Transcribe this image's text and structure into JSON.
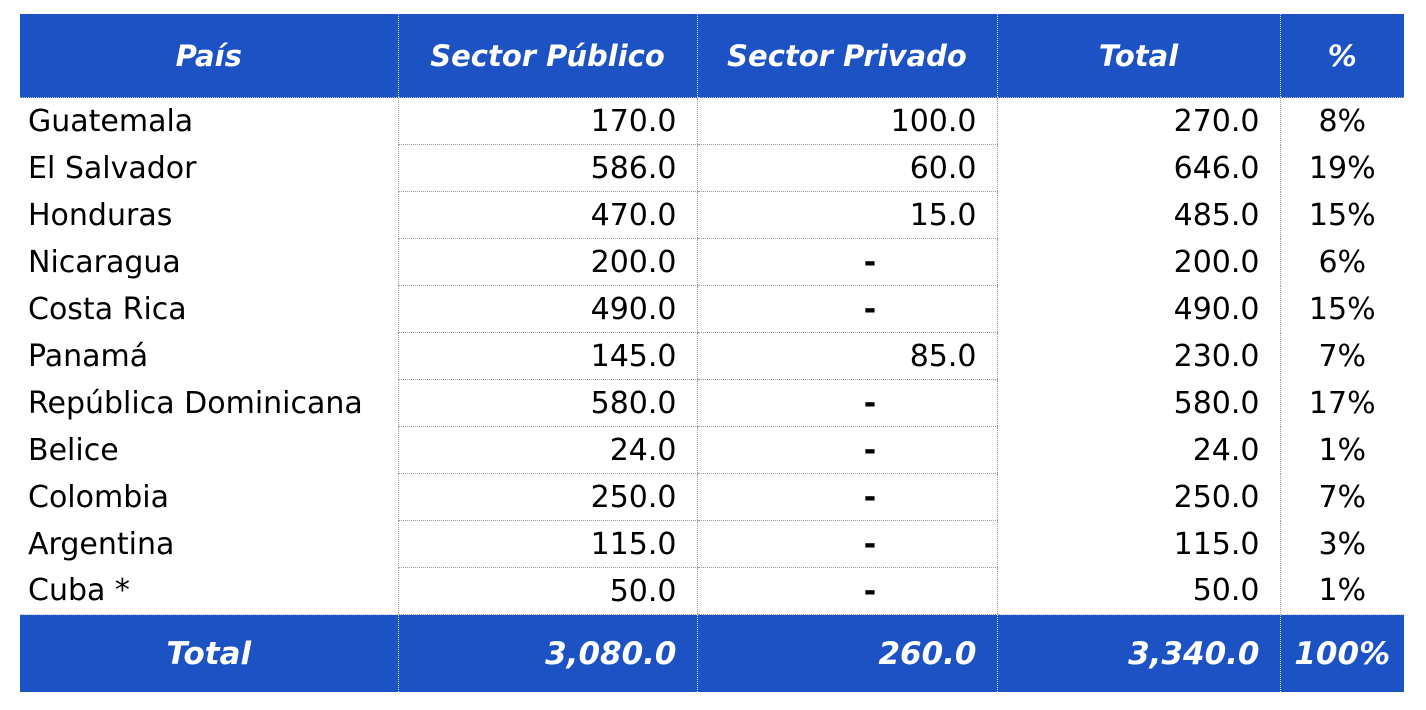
{
  "colors": {
    "header_bg": "#1C52C4",
    "header_text": "#FFFFFF",
    "body_text": "#000000",
    "grid_gray": "#9A9A9A",
    "grid_on_blue": "#DDE3F6"
  },
  "table": {
    "columns": [
      {
        "label": "País"
      },
      {
        "label": "Sector Público"
      },
      {
        "label": "Sector Privado"
      },
      {
        "label": "Total"
      },
      {
        "label": "%"
      }
    ],
    "rows": [
      {
        "pais": "Guatemala",
        "publico": "170.0",
        "privado": "100.0",
        "total": "270.0",
        "pct": "8%"
      },
      {
        "pais": "El Salvador",
        "publico": "586.0",
        "privado": "60.0",
        "total": "646.0",
        "pct": "19%"
      },
      {
        "pais": "Honduras",
        "publico": "470.0",
        "privado": "15.0",
        "total": "485.0",
        "pct": "15%"
      },
      {
        "pais": "Nicaragua",
        "publico": "200.0",
        "privado": "-",
        "total": "200.0",
        "pct": "6%"
      },
      {
        "pais": "Costa Rica",
        "publico": "490.0",
        "privado": "-",
        "total": "490.0",
        "pct": "15%"
      },
      {
        "pais": "Panamá",
        "publico": "145.0",
        "privado": "85.0",
        "total": "230.0",
        "pct": "7%"
      },
      {
        "pais": "República Dominicana",
        "publico": "580.0",
        "privado": "-",
        "total": "580.0",
        "pct": "17%"
      },
      {
        "pais": "Belice",
        "publico": "24.0",
        "privado": "-",
        "total": "24.0",
        "pct": "1%"
      },
      {
        "pais": "Colombia",
        "publico": "250.0",
        "privado": "-",
        "total": "250.0",
        "pct": "7%"
      },
      {
        "pais": "Argentina",
        "publico": "115.0",
        "privado": "-",
        "total": "115.0",
        "pct": "3%"
      },
      {
        "pais": "Cuba *",
        "publico": "50.0",
        "privado": "-",
        "total": "50.0",
        "pct": "1%"
      }
    ],
    "footer": {
      "label": "Total",
      "publico": "3,080.0",
      "privado": "260.0",
      "total": "3,340.0",
      "pct": "100%"
    }
  },
  "chart_data": {
    "type": "table",
    "title": "",
    "columns": [
      "País",
      "Sector Público",
      "Sector Privado",
      "Total",
      "%"
    ],
    "rows": [
      [
        "Guatemala",
        170.0,
        100.0,
        270.0,
        "8%"
      ],
      [
        "El Salvador",
        586.0,
        60.0,
        646.0,
        "19%"
      ],
      [
        "Honduras",
        470.0,
        15.0,
        485.0,
        "15%"
      ],
      [
        "Nicaragua",
        200.0,
        null,
        200.0,
        "6%"
      ],
      [
        "Costa Rica",
        490.0,
        null,
        490.0,
        "15%"
      ],
      [
        "Panamá",
        145.0,
        85.0,
        230.0,
        "7%"
      ],
      [
        "República Dominicana",
        580.0,
        null,
        580.0,
        "17%"
      ],
      [
        "Belice",
        24.0,
        null,
        24.0,
        "1%"
      ],
      [
        "Colombia",
        250.0,
        null,
        250.0,
        "7%"
      ],
      [
        "Argentina",
        115.0,
        null,
        115.0,
        "3%"
      ],
      [
        "Cuba *",
        50.0,
        null,
        50.0,
        "1%"
      ]
    ],
    "totals_row": [
      "Total",
      3080.0,
      260.0,
      3340.0,
      "100%"
    ]
  }
}
